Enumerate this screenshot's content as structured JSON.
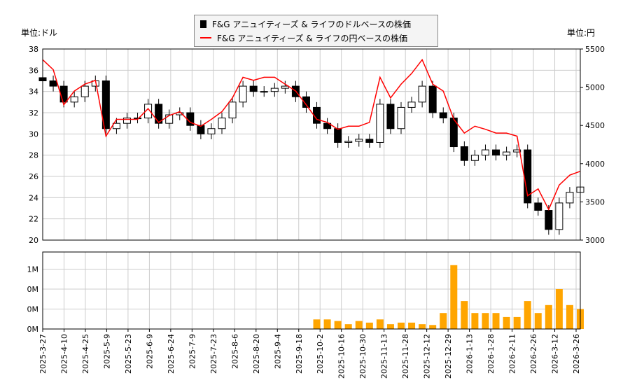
{
  "chart_data": [
    {
      "type": "candlestick+line",
      "legend": [
        {
          "name": "F&G アニュイティーズ & ライフのドルベースの株価",
          "color": "#000000",
          "marker": "square"
        },
        {
          "name": "F&G アニュイティーズ & ライフの円ベースの株価",
          "color": "#ff0000",
          "marker": "line"
        }
      ],
      "legend_position": "top-center",
      "ylabel_left": "単位:ドル",
      "ylabel_right": "単位:円",
      "ylim_left": [
        20,
        38
      ],
      "yticks_left": [
        20,
        22,
        24,
        26,
        28,
        30,
        32,
        34,
        36,
        38
      ],
      "ylim_right": [
        3000,
        5500
      ],
      "yticks_right": [
        3000,
        3500,
        4000,
        4500,
        5000,
        5500
      ],
      "grid": true,
      "usd_close": [
        35,
        34.5,
        33,
        33.5,
        34.5,
        35,
        30.5,
        31,
        31.5,
        31.5,
        32.8,
        31,
        31.8,
        32,
        30.8,
        30,
        30.5,
        31.5,
        33,
        34.5,
        34,
        34,
        34.3,
        34.5,
        33.5,
        32.5,
        31,
        30.5,
        29.2,
        29.3,
        29.5,
        29.2,
        32.8,
        30.5,
        32.5,
        33,
        34.5,
        32,
        31.5,
        28.8,
        27.5,
        28,
        28.5,
        28,
        28.3,
        28.5,
        23.5,
        22.8,
        21,
        23.5,
        24.5,
        25
      ],
      "jpy_price": [
        5360,
        5230,
        4770,
        4950,
        5040,
        5090,
        4360,
        4580,
        4580,
        4580,
        4720,
        4540,
        4630,
        4680,
        4540,
        4490,
        4580,
        4680,
        4860,
        5130,
        5090,
        5130,
        5130,
        5040,
        4950,
        4770,
        4580,
        4540,
        4450,
        4490,
        4490,
        4540,
        5130,
        4860,
        5040,
        5180,
        5360,
        5040,
        4950,
        4580,
        4400,
        4490,
        4450,
        4400,
        4400,
        4360,
        3580,
        3670,
        3400,
        3720,
        3850,
        3900
      ]
    },
    {
      "type": "bar",
      "color": "#ffa500",
      "yticks": [
        0,
        0.25,
        0.5,
        0.75
      ],
      "ytick_labels": [
        "0M",
        "0M",
        "0M",
        "1M"
      ],
      "x_labels": [
        "2025-3-27",
        "2025-4-10",
        "2025-4-25",
        "2025-5-9",
        "2025-5-23",
        "2025-6-9",
        "2025-6-24",
        "2025-7-9",
        "2025-7-23",
        "2025-8-6",
        "2025-8-20",
        "2025-9-4",
        "2025-9-18",
        "2025-10-2",
        "2025-10-16",
        "2025-10-30",
        "2025-11-13",
        "2025-11-28",
        "2025-12-12",
        "2025-12-29",
        "2026-1-13",
        "2026-1-28",
        "2026-2-11",
        "2026-2-26",
        "2026-3-12",
        "2026-3-26"
      ],
      "volume_millions": [
        0,
        0,
        0,
        0,
        0,
        0,
        0,
        0,
        0,
        0,
        0,
        0,
        0,
        0,
        0,
        0,
        0,
        0,
        0,
        0,
        0,
        0,
        0,
        0,
        0,
        0,
        0.12,
        0.12,
        0.1,
        0.06,
        0.1,
        0.08,
        0.12,
        0.06,
        0.08,
        0.08,
        0.06,
        0.05,
        0.2,
        0.8,
        0.35,
        0.2,
        0.2,
        0.2,
        0.15,
        0.15,
        0.35,
        0.2,
        0.3,
        0.5,
        0.3,
        0.25
      ]
    }
  ]
}
